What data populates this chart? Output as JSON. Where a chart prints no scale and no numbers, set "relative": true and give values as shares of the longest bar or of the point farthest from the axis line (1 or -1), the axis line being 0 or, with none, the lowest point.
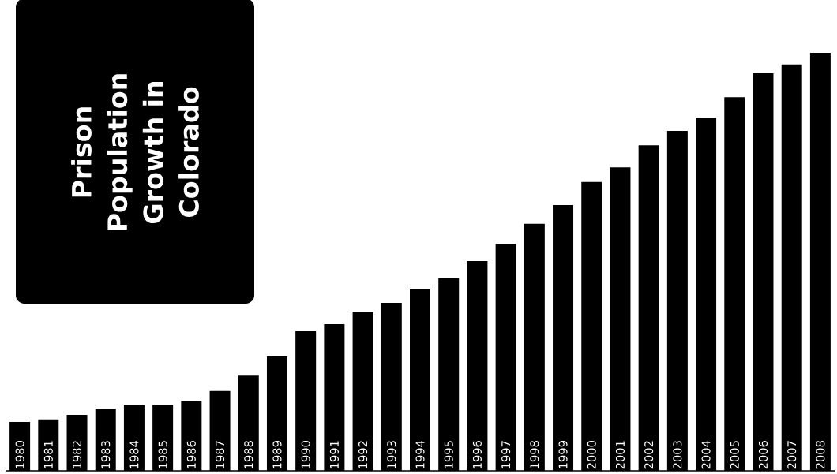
{
  "chart_data": {
    "type": "bar",
    "title": "Prison Population Growth in Colorado",
    "relative": true,
    "color": "#000000",
    "categories": [
      "1980",
      "1981",
      "1982",
      "1983",
      "1984",
      "1985",
      "1986",
      "1987",
      "1988",
      "1989",
      "1990",
      "1991",
      "1992",
      "1993",
      "1994",
      "1995",
      "1996",
      "1997",
      "1998",
      "1999",
      "2000",
      "2001",
      "2002",
      "2003",
      "2004",
      "2005",
      "2006",
      "2007",
      "2008"
    ],
    "values": [
      0.117,
      0.123,
      0.134,
      0.149,
      0.158,
      0.158,
      0.168,
      0.191,
      0.228,
      0.274,
      0.334,
      0.351,
      0.381,
      0.402,
      0.434,
      0.462,
      0.502,
      0.543,
      0.591,
      0.636,
      0.691,
      0.726,
      0.779,
      0.813,
      0.845,
      0.894,
      0.951,
      0.972,
      1.0
    ]
  }
}
